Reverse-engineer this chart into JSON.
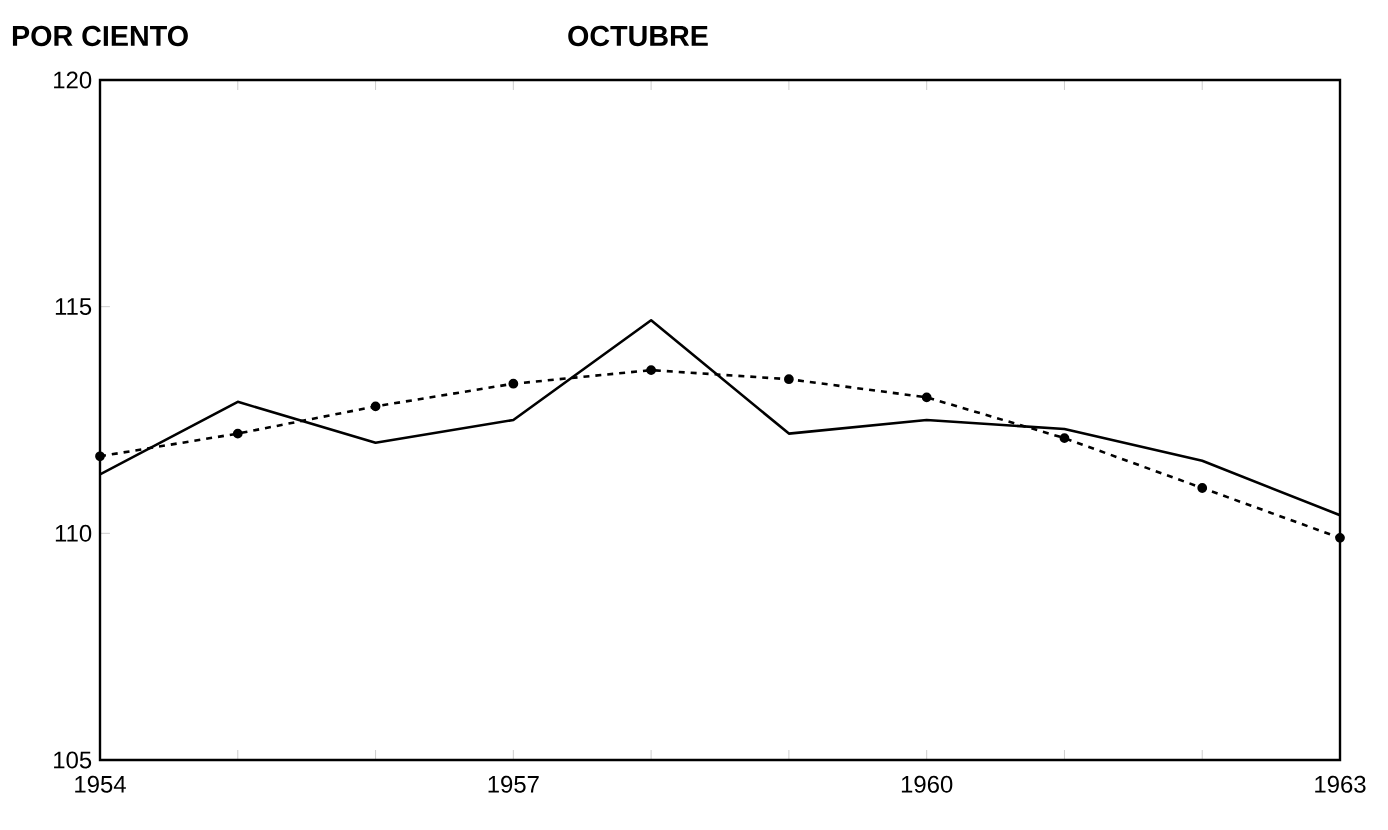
{
  "chart_data": {
    "type": "line",
    "title": "OCTUBRE",
    "ylabel": "POR CIENTO",
    "x": [
      1954,
      1955,
      1956,
      1957,
      1958,
      1959,
      1960,
      1961,
      1962,
      1963
    ],
    "series": [
      {
        "color": "#000000",
        "line_style": "solid",
        "marker": "none",
        "values": [
          111.3,
          112.9,
          112.0,
          112.5,
          114.7,
          112.2,
          112.5,
          112.3,
          111.6,
          110.4
        ]
      },
      {
        "color": "#000000",
        "line_style": "dashed",
        "marker": "circle",
        "values": [
          111.7,
          112.2,
          112.8,
          113.3,
          113.6,
          113.4,
          113.0,
          112.1,
          111.0,
          109.9
        ]
      }
    ],
    "xlim": [
      1954,
      1963
    ],
    "xticks": [
      1954,
      {
        "value": 1955,
        "label": null
      },
      {
        "value": 1956,
        "label": null
      },
      1957,
      {
        "value": 1958,
        "label": null
      },
      {
        "value": 1959,
        "label": null
      },
      1960,
      {
        "value": 1961,
        "label": null
      },
      {
        "value": 1962,
        "label": null
      },
      1963
    ],
    "ylim": [
      105,
      120
    ],
    "yticks": [
      105,
      110,
      115,
      120
    ],
    "grid": false
  }
}
